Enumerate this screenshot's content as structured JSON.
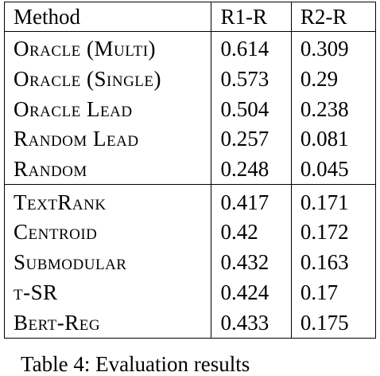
{
  "table": {
    "headers": [
      "Method",
      "R1-R",
      "R2-R"
    ],
    "groups": [
      [
        {
          "method": "Oracle (Multi)",
          "r1": "0.614",
          "r2": "0.309"
        },
        {
          "method": "Oracle (Single)",
          "r1": "0.573",
          "r2": "0.29"
        },
        {
          "method": "Oracle Lead",
          "r1": "0.504",
          "r2": "0.238"
        },
        {
          "method": "Random Lead",
          "r1": "0.257",
          "r2": "0.081"
        },
        {
          "method": "Random",
          "r1": "0.248",
          "r2": "0.045"
        }
      ],
      [
        {
          "method": "TextRank",
          "r1": "0.417",
          "r2": "0.171"
        },
        {
          "method": "Centroid",
          "r1": "0.42",
          "r2": "0.172"
        },
        {
          "method": "Submodular",
          "r1": "0.432",
          "r2": "0.163"
        },
        {
          "method": "t-SR",
          "r1": "0.424",
          "r2": "0.17"
        },
        {
          "method": "Bert-Reg",
          "r1": "0.433",
          "r2": "0.175"
        }
      ]
    ]
  },
  "caption": "Table 4: Evaluation results"
}
